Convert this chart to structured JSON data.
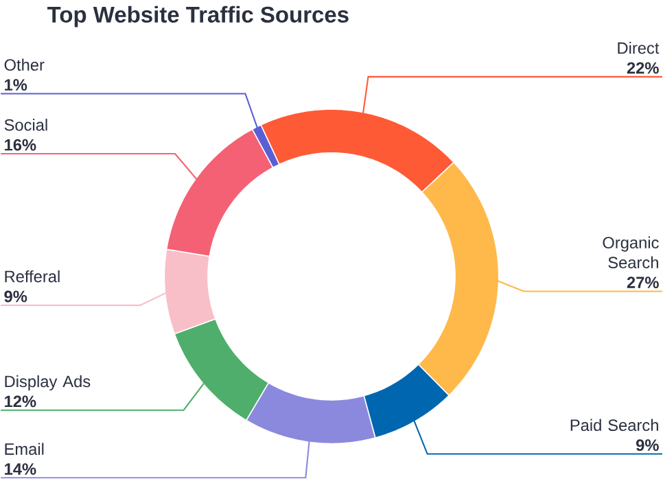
{
  "chart_data": {
    "type": "donut",
    "title": "Top Website Traffic Sources",
    "categories": [
      "Direct",
      "Organic Search",
      "Paid Search",
      "Email",
      "Display Ads",
      "Refferal",
      "Social",
      "Other"
    ],
    "values": [
      22,
      27,
      9,
      14,
      12,
      9,
      16,
      1
    ],
    "value_labels": [
      "22%",
      "27%",
      "9%",
      "14%",
      "12%",
      "9%",
      "16%",
      "1%"
    ],
    "colors": [
      "#ff5a36",
      "#ffb84a",
      "#0066b0",
      "#8a89de",
      "#4fae6b",
      "#f9bfc8",
      "#f46174",
      "#5a5fd6"
    ]
  }
}
